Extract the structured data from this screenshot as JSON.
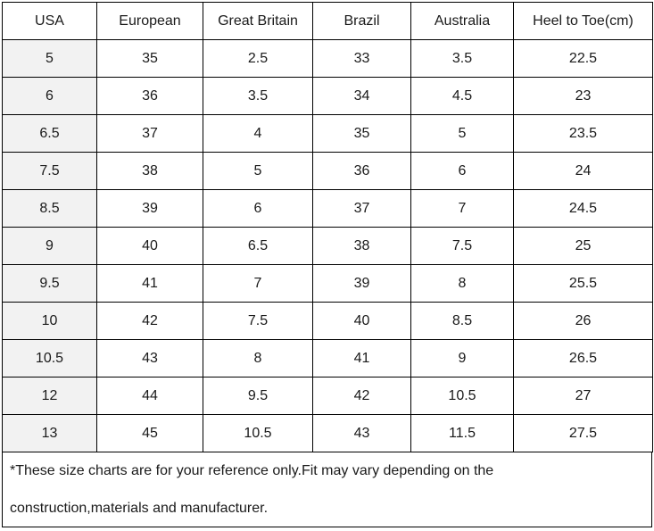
{
  "table": {
    "headers": [
      "USA",
      "European",
      "Great Britain",
      "Brazil",
      "Australia",
      "Heel to Toe(cm)"
    ],
    "rows": [
      [
        "5",
        "35",
        "2.5",
        "33",
        "3.5",
        "22.5"
      ],
      [
        "6",
        "36",
        "3.5",
        "34",
        "4.5",
        "23"
      ],
      [
        "6.5",
        "37",
        "4",
        "35",
        "5",
        "23.5"
      ],
      [
        "7.5",
        "38",
        "5",
        "36",
        "6",
        "24"
      ],
      [
        "8.5",
        "39",
        "6",
        "37",
        "7",
        "24.5"
      ],
      [
        "9",
        "40",
        "6.5",
        "38",
        "7.5",
        "25"
      ],
      [
        "9.5",
        "41",
        "7",
        "39",
        "8",
        "25.5"
      ],
      [
        "10",
        "42",
        "7.5",
        "40",
        "8.5",
        "26"
      ],
      [
        "10.5",
        "43",
        "8",
        "41",
        "9",
        "26.5"
      ],
      [
        "12",
        "44",
        "9.5",
        "42",
        "10.5",
        "27"
      ],
      [
        "13",
        "45",
        "10.5",
        "43",
        "11.5",
        "27.5"
      ]
    ]
  },
  "note": {
    "line1": "*These size charts are for your reference only.Fit may vary depending on the",
    "line2": "construction,materials and manufacturer."
  },
  "colors": {
    "first_column_bg": "#f2f2f2",
    "border": "#000000"
  }
}
